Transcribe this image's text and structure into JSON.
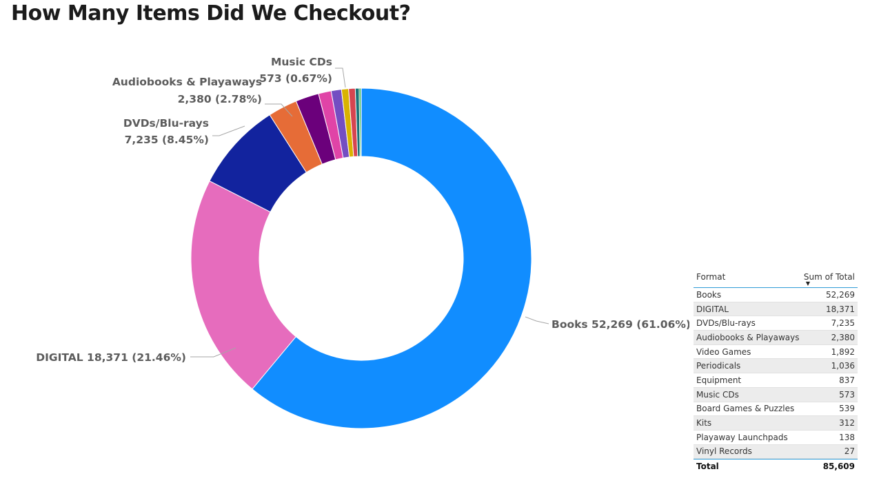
{
  "title": "How Many Items Did We Checkout?",
  "chart_data": {
    "type": "pie",
    "subtype": "donut",
    "start_angle": "12 o'clock, clockwise",
    "slices": [
      {
        "label": "Books",
        "value": 52269,
        "pct": "61.06%",
        "color": "#118dff",
        "show_label": true,
        "label_text": "Books 52,269 (61.06%)"
      },
      {
        "label": "DIGITAL",
        "value": 18371,
        "pct": "21.46%",
        "color": "#e66cbd",
        "show_label": true,
        "label_text": "DIGITAL 18,371 (21.46%)"
      },
      {
        "label": "DVDs/Blu-rays",
        "value": 7235,
        "pct": "8.45%",
        "color": "#12239e",
        "show_label": true,
        "label_line1": "DVDs/Blu-rays",
        "label_line2": "7,235 (8.45%)"
      },
      {
        "label": "Audiobooks & Playaways",
        "value": 2380,
        "pct": "2.78%",
        "color": "#e66c37",
        "show_label": true,
        "label_line1": "Audiobooks & Playaways",
        "label_line2": "2,380 (2.78%)"
      },
      {
        "label": "Video Games",
        "value": 1892,
        "color": "#6b007b",
        "show_label": false
      },
      {
        "label": "Periodicals",
        "value": 1036,
        "color": "#e044a7",
        "show_label": false
      },
      {
        "label": "Equipment",
        "value": 837,
        "color": "#744ec2",
        "show_label": false
      },
      {
        "label": "Music CDs",
        "value": 573,
        "pct": "0.67%",
        "color": "#d9b300",
        "show_label": true,
        "label_line1": "Music CDs",
        "label_line2": "573 (0.67%)"
      },
      {
        "label": "Board Games & Puzzles",
        "value": 539,
        "color": "#d64550",
        "show_label": false
      },
      {
        "label": "Kits",
        "value": 312,
        "color": "#197278",
        "show_label": false
      },
      {
        "label": "Playaway Launchpads",
        "value": 138,
        "color": "#1aab40",
        "show_label": false
      },
      {
        "label": "Vinyl Records",
        "value": 27,
        "color": "#15c6f4",
        "show_label": false
      }
    ]
  },
  "table": {
    "header_format": "Format",
    "header_total": "Sum of Total",
    "sort": "descending",
    "rows": [
      {
        "format": "Books",
        "total": "52,269"
      },
      {
        "format": "DIGITAL",
        "total": "18,371"
      },
      {
        "format": "DVDs/Blu-rays",
        "total": "7,235"
      },
      {
        "format": "Audiobooks & Playaways",
        "total": "2,380"
      },
      {
        "format": "Video Games",
        "total": "1,892"
      },
      {
        "format": "Periodicals",
        "total": "1,036"
      },
      {
        "format": "Equipment",
        "total": "837"
      },
      {
        "format": "Music CDs",
        "total": "573"
      },
      {
        "format": "Board Games & Puzzles",
        "total": "539"
      },
      {
        "format": "Kits",
        "total": "312"
      },
      {
        "format": "Playaway Launchpads",
        "total": "138"
      },
      {
        "format": "Vinyl Records",
        "total": "27"
      }
    ],
    "total_label": "Total",
    "total_value": "85,609"
  }
}
